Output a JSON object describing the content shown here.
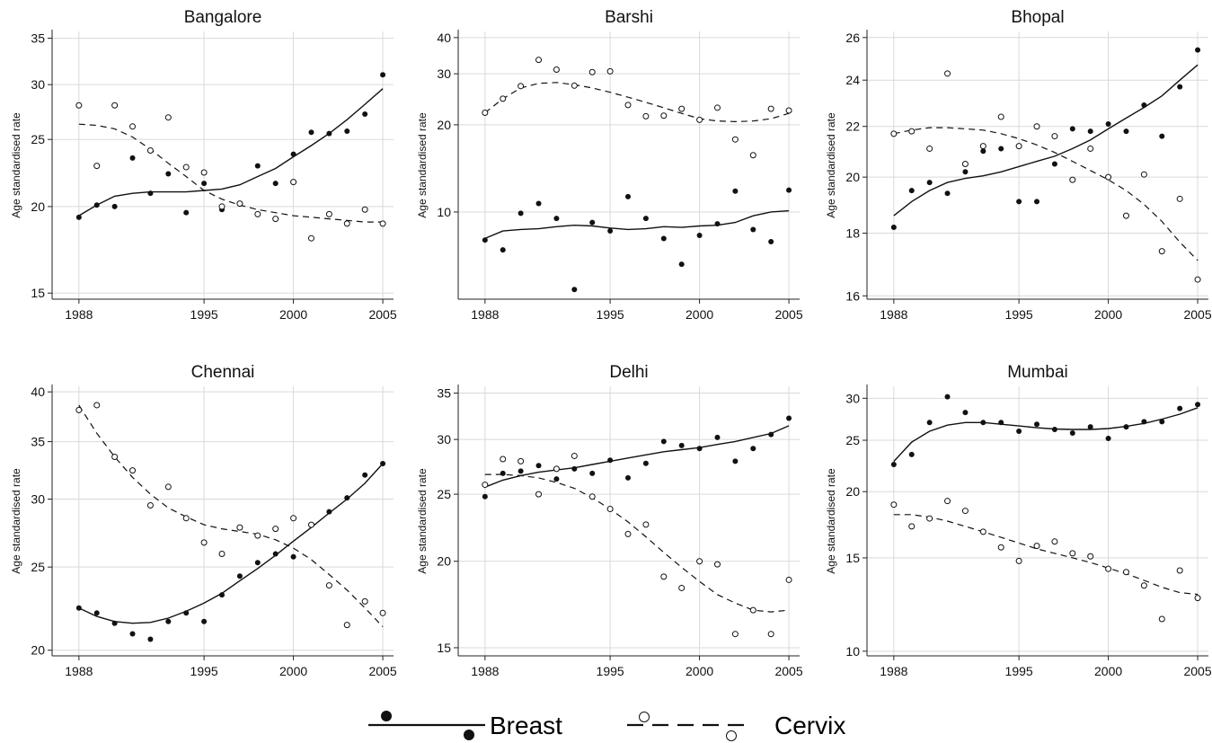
{
  "chart_data": [
    {
      "type": "scatter",
      "title": "Bangalore",
      "ylabel": "Age standardised rate",
      "log_y": true,
      "ylim": [
        14.7,
        35.8
      ],
      "yticks": [
        15,
        20,
        25,
        30,
        35
      ],
      "xlim": [
        1986.5,
        2005.6
      ],
      "xticks": [
        1988,
        1995,
        2000,
        2005
      ],
      "xtick_labels": [
        "1988",
        "1995",
        "2000",
        "2005"
      ],
      "x": [
        1988,
        1989,
        1990,
        1991,
        1992,
        1993,
        1994,
        1995,
        1996,
        1997,
        1998,
        1999,
        2000,
        2001,
        2002,
        2003,
        2004,
        2005
      ],
      "series": [
        {
          "name": "Breast",
          "values": [
            19.3,
            20.1,
            20.0,
            23.5,
            20.9,
            22.3,
            19.6,
            21.6,
            19.8,
            20.2,
            22.9,
            21.6,
            23.8,
            25.6,
            25.5,
            25.7,
            27.2,
            31.0
          ],
          "trend": [
            19.4,
            20.1,
            20.7,
            20.9,
            21.0,
            21.0,
            21.0,
            21.1,
            21.2,
            21.5,
            22.1,
            22.7,
            23.6,
            24.5,
            25.5,
            26.7,
            28.1,
            29.6
          ]
        },
        {
          "name": "Cervix",
          "values": [
            28.0,
            22.9,
            28.0,
            26.1,
            24.1,
            26.9,
            22.8,
            22.4,
            20.0,
            20.2,
            19.5,
            19.2,
            21.7,
            18.0,
            19.5,
            18.9,
            19.8,
            18.9
          ],
          "trend": [
            26.3,
            26.2,
            25.9,
            25.2,
            24.2,
            23.1,
            22.1,
            21.1,
            20.5,
            20.1,
            19.8,
            19.6,
            19.4,
            19.3,
            19.2,
            19.1,
            19.0,
            19.0
          ]
        }
      ]
    },
    {
      "type": "scatter",
      "title": "Barshi",
      "ylabel": "Age standardised rate",
      "log_y": true,
      "ylim": [
        5.0,
        42.0
      ],
      "yticks": [
        10,
        20,
        30,
        40
      ],
      "xlim": [
        1986.5,
        2005.6
      ],
      "xticks": [
        1988,
        1995,
        2000,
        2005
      ],
      "xtick_labels": [
        "1988",
        "1995",
        "2000",
        "2005"
      ],
      "x": [
        1988,
        1989,
        1990,
        1991,
        1992,
        1993,
        1994,
        1995,
        1996,
        1997,
        1998,
        1999,
        2000,
        2001,
        2002,
        2003,
        2004,
        2005
      ],
      "series": [
        {
          "name": "Breast",
          "values": [
            8.0,
            7.4,
            9.9,
            10.7,
            9.5,
            5.4,
            9.2,
            8.6,
            11.3,
            9.5,
            8.1,
            6.6,
            8.3,
            9.1,
            11.8,
            8.7,
            7.9,
            11.9
          ],
          "trend": [
            8.1,
            8.6,
            8.7,
            8.75,
            8.9,
            9.0,
            8.95,
            8.8,
            8.7,
            8.75,
            8.9,
            8.85,
            8.95,
            9.0,
            9.2,
            9.7,
            10.0,
            10.1
          ]
        },
        {
          "name": "Cervix",
          "values": [
            22.0,
            24.6,
            27.2,
            33.5,
            31.0,
            27.3,
            30.4,
            30.6,
            23.4,
            21.4,
            21.5,
            22.7,
            20.8,
            22.9,
            17.8,
            15.7,
            22.7,
            22.4
          ],
          "trend": [
            22.0,
            24.6,
            26.8,
            27.8,
            28.0,
            27.5,
            26.8,
            25.9,
            24.9,
            23.9,
            22.9,
            21.9,
            21.0,
            20.6,
            20.5,
            20.6,
            21.0,
            21.9
          ]
        }
      ]
    },
    {
      "type": "scatter",
      "title": "Bhopal",
      "ylabel": "Age standardised rate",
      "log_y": true,
      "ylim": [
        15.9,
        26.3
      ],
      "yticks": [
        16,
        18,
        20,
        22,
        24,
        26
      ],
      "xlim": [
        1986.5,
        2005.6
      ],
      "xticks": [
        1988,
        1995,
        2000,
        2005
      ],
      "xtick_labels": [
        "1988",
        "1995",
        "2000",
        "2005"
      ],
      "x": [
        1988,
        1989,
        1990,
        1991,
        1992,
        1993,
        1994,
        1995,
        1996,
        1997,
        1998,
        1999,
        2000,
        2001,
        2002,
        2003,
        2004,
        2005
      ],
      "series": [
        {
          "name": "Breast",
          "values": [
            18.2,
            19.5,
            19.8,
            19.4,
            20.2,
            21.0,
            21.1,
            19.1,
            19.1,
            20.5,
            21.9,
            21.8,
            22.1,
            21.8,
            22.9,
            21.6,
            23.7,
            25.4
          ],
          "trend": [
            18.6,
            19.1,
            19.5,
            19.8,
            19.95,
            20.05,
            20.2,
            20.4,
            20.6,
            20.8,
            21.1,
            21.45,
            21.9,
            22.35,
            22.8,
            23.3,
            24.0,
            24.7
          ]
        },
        {
          "name": "Cervix",
          "values": [
            21.7,
            21.8,
            21.1,
            24.3,
            20.5,
            21.2,
            22.4,
            21.2,
            22.0,
            21.6,
            19.9,
            21.1,
            20.0,
            18.6,
            20.1,
            17.4,
            19.2,
            16.5
          ],
          "trend": [
            21.7,
            21.85,
            21.95,
            21.95,
            21.9,
            21.85,
            21.7,
            21.5,
            21.25,
            20.95,
            20.6,
            20.25,
            19.9,
            19.5,
            19.0,
            18.4,
            17.7,
            17.1
          ]
        }
      ]
    },
    {
      "type": "scatter",
      "title": "Chennai",
      "ylabel": "Age standardised rate",
      "log_y": true,
      "ylim": [
        19.7,
        40.6
      ],
      "yticks": [
        20,
        25,
        30,
        35,
        40
      ],
      "xlim": [
        1986.5,
        2005.6
      ],
      "xticks": [
        1988,
        1995,
        2000,
        2005
      ],
      "xtick_labels": [
        "1988",
        "1995",
        "2000",
        "2005"
      ],
      "x": [
        1988,
        1989,
        1990,
        1991,
        1992,
        1993,
        1994,
        1995,
        1996,
        1997,
        1998,
        1999,
        2000,
        2001,
        2002,
        2003,
        2004,
        2005
      ],
      "series": [
        {
          "name": "Breast",
          "values": [
            22.4,
            22.1,
            21.5,
            20.9,
            20.6,
            21.6,
            22.1,
            21.6,
            23.2,
            24.4,
            25.3,
            25.9,
            25.7,
            28.0,
            29.0,
            30.1,
            32.0,
            33.0
          ],
          "trend": [
            22.4,
            21.9,
            21.6,
            21.5,
            21.55,
            21.8,
            22.2,
            22.7,
            23.3,
            24.1,
            24.9,
            25.8,
            26.8,
            27.8,
            28.9,
            30.0,
            31.3,
            33.0
          ]
        },
        {
          "name": "Cervix",
          "values": [
            38.1,
            38.6,
            33.6,
            32.4,
            29.5,
            31.0,
            28.5,
            26.7,
            25.9,
            27.8,
            27.2,
            27.7,
            28.5,
            28.0,
            23.8,
            21.4,
            22.8,
            22.1
          ],
          "trend": [
            38.6,
            35.8,
            33.6,
            31.8,
            30.4,
            29.3,
            28.6,
            28.0,
            27.7,
            27.5,
            27.3,
            26.9,
            26.3,
            25.5,
            24.5,
            23.5,
            22.4,
            21.3
          ]
        }
      ]
    },
    {
      "type": "scatter",
      "title": "Delhi",
      "ylabel": "Age standardised rate",
      "log_y": true,
      "ylim": [
        14.6,
        35.8
      ],
      "yticks": [
        15,
        20,
        25,
        30,
        35
      ],
      "xlim": [
        1986.5,
        2005.6
      ],
      "xticks": [
        1988,
        1995,
        2000,
        2005
      ],
      "xtick_labels": [
        "1988",
        "1995",
        "2000",
        "2005"
      ],
      "x": [
        1988,
        1989,
        1990,
        1991,
        1992,
        1993,
        1994,
        1995,
        1996,
        1997,
        1998,
        1999,
        2000,
        2001,
        2002,
        2003,
        2004,
        2005
      ],
      "series": [
        {
          "name": "Breast",
          "values": [
            24.8,
            26.8,
            27.0,
            27.5,
            26.3,
            27.2,
            26.8,
            28.0,
            26.4,
            27.7,
            29.8,
            29.4,
            29.1,
            30.2,
            27.9,
            29.1,
            30.5,
            32.2
          ],
          "trend": [
            25.6,
            26.2,
            26.6,
            26.9,
            27.1,
            27.3,
            27.6,
            27.9,
            28.2,
            28.5,
            28.8,
            29.0,
            29.2,
            29.5,
            29.8,
            30.2,
            30.6,
            31.4
          ]
        },
        {
          "name": "Cervix",
          "values": [
            25.8,
            28.1,
            27.9,
            25.0,
            27.2,
            28.4,
            24.8,
            23.8,
            21.9,
            22.6,
            19.0,
            18.3,
            20.0,
            19.8,
            15.7,
            17.0,
            15.7,
            18.8
          ],
          "trend": [
            26.7,
            26.7,
            26.6,
            26.4,
            26.0,
            25.5,
            24.7,
            23.8,
            22.8,
            21.7,
            20.6,
            19.6,
            18.7,
            17.9,
            17.4,
            17.0,
            16.9,
            17.0
          ]
        }
      ]
    },
    {
      "type": "scatter",
      "title": "Mumbai",
      "ylabel": "Age standardised rate",
      "log_y": true,
      "ylim": [
        9.8,
        31.6
      ],
      "yticks": [
        10,
        15,
        20,
        25,
        30
      ],
      "xlim": [
        1986.5,
        2005.6
      ],
      "xticks": [
        1988,
        1995,
        2000,
        2005
      ],
      "xtick_labels": [
        "1988",
        "1995",
        "2000",
        "2005"
      ],
      "x": [
        1988,
        1989,
        1990,
        1991,
        1992,
        1993,
        1994,
        1995,
        1996,
        1997,
        1998,
        1999,
        2000,
        2001,
        2002,
        2003,
        2004,
        2005
      ],
      "series": [
        {
          "name": "Breast",
          "values": [
            22.5,
            23.5,
            27.0,
            30.2,
            28.2,
            27.0,
            27.0,
            26.0,
            26.8,
            26.2,
            25.8,
            26.5,
            25.2,
            26.5,
            27.1,
            27.1,
            28.7,
            29.2
          ],
          "trend": [
            22.8,
            24.8,
            26.0,
            26.7,
            27.0,
            27.0,
            26.8,
            26.6,
            26.4,
            26.25,
            26.2,
            26.2,
            26.3,
            26.55,
            26.9,
            27.4,
            28.0,
            28.8
          ]
        },
        {
          "name": "Cervix",
          "values": [
            18.9,
            17.2,
            17.8,
            19.2,
            18.4,
            16.8,
            15.7,
            14.8,
            15.8,
            16.1,
            15.3,
            15.1,
            14.3,
            14.1,
            13.3,
            11.5,
            14.2,
            12.6
          ],
          "trend": [
            18.1,
            18.1,
            17.9,
            17.6,
            17.2,
            16.8,
            16.4,
            16.0,
            15.6,
            15.3,
            15.0,
            14.7,
            14.35,
            14.0,
            13.6,
            13.2,
            12.9,
            12.8
          ]
        }
      ]
    }
  ],
  "legend": {
    "items": [
      "Breast",
      "Cervix"
    ]
  }
}
